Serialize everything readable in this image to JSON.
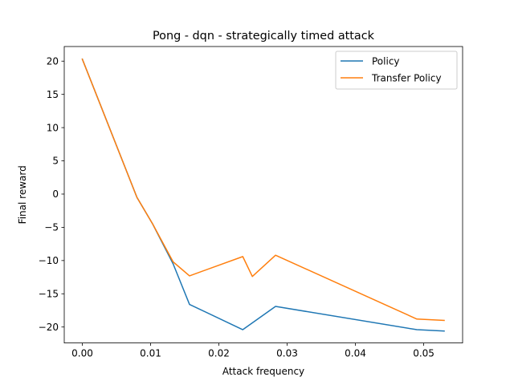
{
  "chart_data": {
    "type": "line",
    "title": "Pong - dqn - strategically timed attack",
    "xlabel": "Attack frequency",
    "ylabel": "Final reward",
    "xlim": [
      -0.00265,
      0.0557
    ],
    "ylim": [
      -22.4,
      22.2
    ],
    "xticks": [
      0.0,
      0.01,
      0.02,
      0.03,
      0.04,
      0.05
    ],
    "xtick_labels": [
      "0.00",
      "0.01",
      "0.02",
      "0.03",
      "0.04",
      "0.05"
    ],
    "yticks": [
      20,
      15,
      10,
      5,
      0,
      -5,
      -10,
      -15,
      -20
    ],
    "ytick_labels": [
      "20",
      "15",
      "10",
      "5",
      "0",
      "−5",
      "−10",
      "−15",
      "−20"
    ],
    "grid": false,
    "legend_position": "top-right",
    "series": [
      {
        "name": "Policy",
        "color": "#1f77b4",
        "x": [
          0.0,
          0.008,
          0.0103,
          0.0133,
          0.0157,
          0.0235,
          0.0283,
          0.049,
          0.053
        ],
        "y": [
          20.3,
          -0.5,
          -4.5,
          -10.5,
          -16.6,
          -20.4,
          -16.9,
          -20.4,
          -20.6
        ]
      },
      {
        "name": "Transfer Policy",
        "color": "#ff7f0e",
        "x": [
          0.0,
          0.008,
          0.0103,
          0.0133,
          0.0157,
          0.0235,
          0.0249,
          0.0283,
          0.049,
          0.053
        ],
        "y": [
          20.3,
          -0.5,
          -4.5,
          -10.2,
          -12.3,
          -9.4,
          -12.4,
          -9.2,
          -18.8,
          -19.0
        ]
      }
    ]
  }
}
